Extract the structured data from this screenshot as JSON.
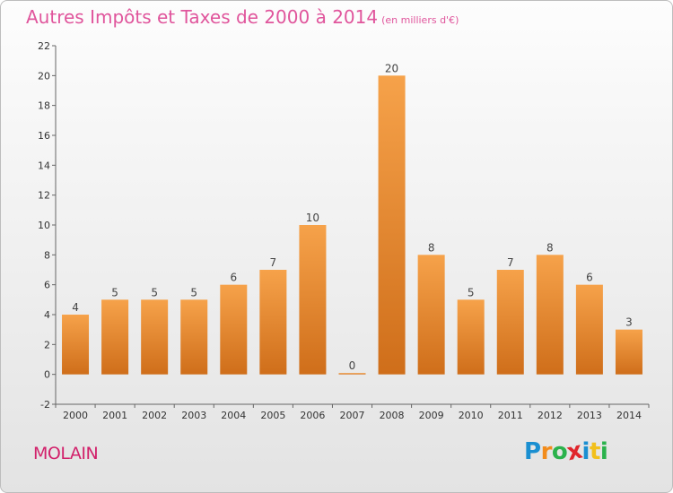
{
  "header": {
    "title": "Autres Impôts et Taxes de 2000 à 2014",
    "subtitle": "(en milliers d'€)"
  },
  "footer": {
    "place": "MOLAIN",
    "logo_letters": [
      "P",
      "r",
      "o",
      "x",
      "i",
      "t",
      "i"
    ],
    "logo_colors": [
      "#1a8fd1",
      "#f28c1c",
      "#2bb24c",
      "#e0262c",
      "#1a8fd1",
      "#f2c01c",
      "#2bb24c"
    ]
  },
  "chart_data": {
    "type": "bar",
    "title": "Autres Impôts et Taxes de 2000 à 2014",
    "subtitle": "(en milliers d'€)",
    "xlabel": "",
    "ylabel": "",
    "ylim": [
      -2,
      22
    ],
    "yticks": [
      -2,
      0,
      2,
      4,
      6,
      8,
      10,
      12,
      14,
      16,
      18,
      20,
      22
    ],
    "grid": false,
    "categories": [
      "2000",
      "2001",
      "2002",
      "2003",
      "2004",
      "2005",
      "2006",
      "2007",
      "2008",
      "2009",
      "2010",
      "2011",
      "2012",
      "2013",
      "2014"
    ],
    "values": [
      4,
      5,
      5,
      5,
      6,
      7,
      10,
      0,
      20,
      8,
      5,
      7,
      8,
      6,
      3
    ],
    "colors": {
      "bar_light": "#f6a24a",
      "bar_dark": "#cf6e1a",
      "axis": "#666666"
    }
  }
}
